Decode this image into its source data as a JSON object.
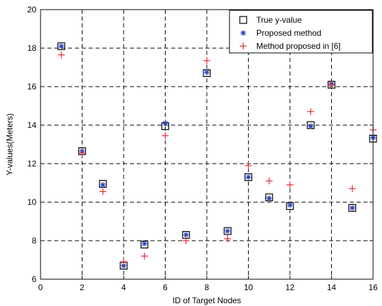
{
  "chart_data": {
    "type": "scatter",
    "title": "",
    "xlabel": "ID of Target Nodes",
    "ylabel": "Y-values(Meters)",
    "xlim": [
      0,
      16
    ],
    "ylim": [
      6,
      20
    ],
    "xticks": [
      0,
      2,
      4,
      6,
      8,
      10,
      12,
      14,
      16
    ],
    "yticks": [
      6,
      8,
      10,
      12,
      14,
      16,
      18,
      20
    ],
    "grid": true,
    "grid_style": "dashed",
    "legend_position": "top-right",
    "x": [
      1,
      2,
      3,
      4,
      5,
      6,
      7,
      8,
      9,
      10,
      11,
      12,
      13,
      14,
      15,
      16
    ],
    "series": [
      {
        "name": "True y-value",
        "marker": "square",
        "color": "#000000",
        "values": [
          18.1,
          12.65,
          10.95,
          6.7,
          7.8,
          13.95,
          8.3,
          16.7,
          8.5,
          11.3,
          10.25,
          9.8,
          14.0,
          16.1,
          9.7,
          13.3
        ]
      },
      {
        "name": "Proposed method",
        "marker": "asterisk",
        "color": "#1f3fbf",
        "values": [
          18.1,
          12.65,
          10.9,
          6.7,
          7.85,
          14.1,
          8.3,
          16.75,
          8.5,
          11.3,
          10.2,
          9.85,
          13.95,
          16.15,
          9.7,
          13.35
        ]
      },
      {
        "name": "Method proposed in [6]",
        "marker": "plus",
        "color": "#e8262e",
        "values": [
          17.65,
          12.55,
          10.55,
          6.9,
          7.2,
          13.45,
          8.0,
          17.35,
          8.1,
          11.9,
          11.1,
          10.9,
          14.7,
          16.1,
          10.7,
          13.75
        ]
      }
    ]
  }
}
